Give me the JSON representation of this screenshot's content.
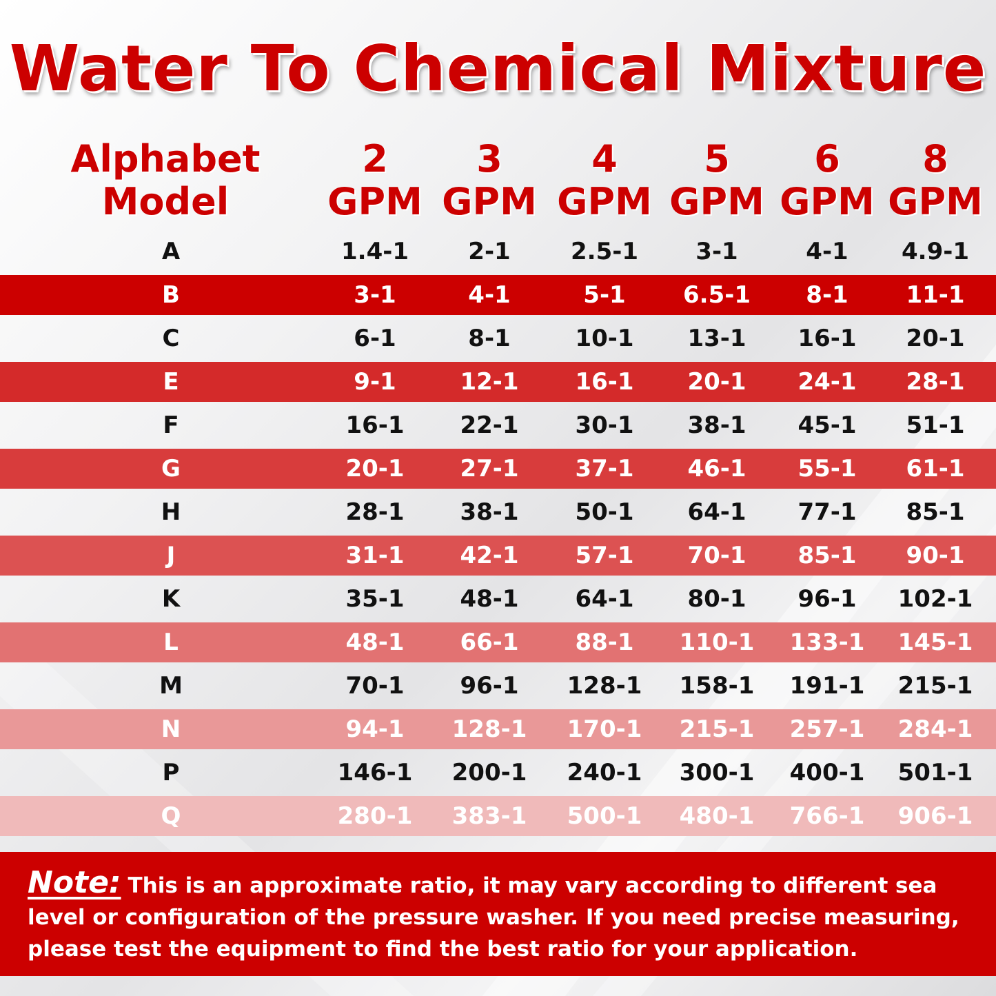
{
  "title": "Water To Chemical Mixture",
  "header": {
    "model_line1": "Alphabet",
    "model_line2": "Model",
    "columns": [
      {
        "num": "2",
        "unit": "GPM"
      },
      {
        "num": "3",
        "unit": "GPM"
      },
      {
        "num": "4",
        "unit": "GPM"
      },
      {
        "num": "5",
        "unit": "GPM"
      },
      {
        "num": "6",
        "unit": "GPM"
      },
      {
        "num": "8",
        "unit": "GPM"
      }
    ]
  },
  "rows": [
    {
      "model": "A",
      "values": [
        "1.4-1",
        "2-1",
        "2.5-1",
        "3-1",
        "4-1",
        "4.9-1"
      ]
    },
    {
      "model": "B",
      "values": [
        "3-1",
        "4-1",
        "5-1",
        "6.5-1",
        "8-1",
        "11-1"
      ]
    },
    {
      "model": "C",
      "values": [
        "6-1",
        "8-1",
        "10-1",
        "13-1",
        "16-1",
        "20-1"
      ]
    },
    {
      "model": "E",
      "values": [
        "9-1",
        "12-1",
        "16-1",
        "20-1",
        "24-1",
        "28-1"
      ]
    },
    {
      "model": "F",
      "values": [
        "16-1",
        "22-1",
        "30-1",
        "38-1",
        "45-1",
        "51-1"
      ]
    },
    {
      "model": "G",
      "values": [
        "20-1",
        "27-1",
        "37-1",
        "46-1",
        "55-1",
        "61-1"
      ]
    },
    {
      "model": "H",
      "values": [
        "28-1",
        "38-1",
        "50-1",
        "64-1",
        "77-1",
        "85-1"
      ]
    },
    {
      "model": "J",
      "values": [
        "31-1",
        "42-1",
        "57-1",
        "70-1",
        "85-1",
        "90-1"
      ]
    },
    {
      "model": "K",
      "values": [
        "35-1",
        "48-1",
        "64-1",
        "80-1",
        "96-1",
        "102-1"
      ]
    },
    {
      "model": "L",
      "values": [
        "48-1",
        "66-1",
        "88-1",
        "110-1",
        "133-1",
        "145-1"
      ]
    },
    {
      "model": "M",
      "values": [
        "70-1",
        "96-1",
        "128-1",
        "158-1",
        "191-1",
        "215-1"
      ]
    },
    {
      "model": "N",
      "values": [
        "94-1",
        "128-1",
        "170-1",
        "215-1",
        "257-1",
        "284-1"
      ]
    },
    {
      "model": "P",
      "values": [
        "146-1",
        "200-1",
        "240-1",
        "300-1",
        "400-1",
        "501-1"
      ]
    },
    {
      "model": "Q",
      "values": [
        "280-1",
        "383-1",
        "500-1",
        "480-1",
        "766-1",
        "906-1"
      ]
    }
  ],
  "band_colors": [
    "#cc0000",
    "#d42a2a",
    "#d83c3c",
    "#dc5252",
    "#e27272",
    "#e99898",
    "#f0baba"
  ],
  "note": {
    "label": "Note:",
    "text": "This is an approximate ratio, it may vary according to different sea level or configuration of the pressure washer. If you need precise measuring, please test the equipment to find the best ratio for your application."
  }
}
